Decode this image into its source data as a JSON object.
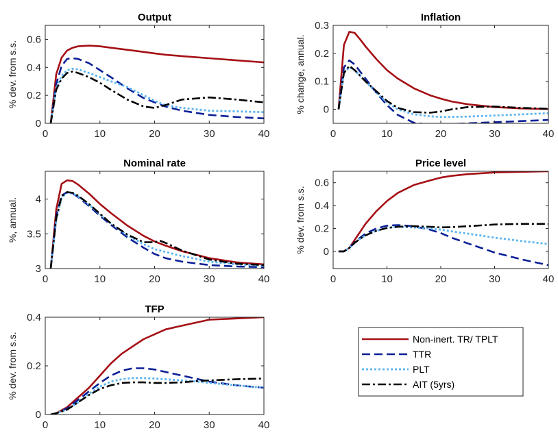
{
  "legend": [
    {
      "label": "Non-inert. TR/ TPLT",
      "color": "#a50f15",
      "dash": "solid"
    },
    {
      "label": "TTR",
      "color": "#0b1f96",
      "dash": "dash"
    },
    {
      "label": "PLT",
      "color": "#5ab4f0",
      "dash": "dot"
    },
    {
      "label": "AIT (5yrs)",
      "color": "#000000",
      "dash": "dashdot"
    }
  ],
  "chart_data": [
    {
      "type": "line",
      "title": "Output",
      "ylabel": "% dev. from s.s.",
      "xlim": [
        0,
        40
      ],
      "ylim": [
        0,
        0.7
      ],
      "xticks": [
        0,
        10,
        20,
        30,
        40
      ],
      "yticks": [
        0,
        0.2,
        0.4,
        0.6
      ],
      "x": [
        1,
        2,
        3,
        4,
        5,
        6,
        8,
        10,
        12,
        15,
        18,
        20,
        22,
        25,
        30,
        35,
        40
      ],
      "series": [
        {
          "name": "Non-inert. TR/ TPLT",
          "values": [
            0,
            0.35,
            0.47,
            0.52,
            0.54,
            0.55,
            0.555,
            0.55,
            0.54,
            0.525,
            0.51,
            0.5,
            0.49,
            0.48,
            0.465,
            0.45,
            0.435
          ]
        },
        {
          "name": "TTR",
          "values": [
            0,
            0.28,
            0.41,
            0.46,
            0.465,
            0.46,
            0.43,
            0.38,
            0.33,
            0.25,
            0.18,
            0.15,
            0.12,
            0.09,
            0.06,
            0.045,
            0.035
          ]
        },
        {
          "name": "PLT",
          "values": [
            0,
            0.25,
            0.34,
            0.38,
            0.39,
            0.385,
            0.36,
            0.33,
            0.3,
            0.26,
            0.2,
            0.16,
            0.13,
            0.11,
            0.09,
            0.085,
            0.08
          ]
        },
        {
          "name": "AIT (5yrs)",
          "values": [
            0,
            0.24,
            0.32,
            0.36,
            0.37,
            0.36,
            0.33,
            0.29,
            0.24,
            0.17,
            0.12,
            0.11,
            0.13,
            0.17,
            0.185,
            0.17,
            0.15
          ]
        }
      ]
    },
    {
      "type": "line",
      "title": "Inflation",
      "ylabel": "% change, annual.",
      "xlim": [
        0,
        40
      ],
      "ylim": [
        -0.05,
        0.3
      ],
      "xticks": [
        0,
        10,
        20,
        30,
        40
      ],
      "yticks": [
        0,
        0.1,
        0.2,
        0.3
      ],
      "x": [
        1,
        2,
        3,
        4,
        5,
        6,
        8,
        10,
        12,
        15,
        18,
        20,
        22,
        25,
        30,
        35,
        40
      ],
      "series": [
        {
          "name": "Non-inert. TR/ TPLT",
          "values": [
            0,
            0.23,
            0.277,
            0.273,
            0.25,
            0.225,
            0.18,
            0.14,
            0.11,
            0.075,
            0.05,
            0.038,
            0.028,
            0.018,
            0.008,
            0.003,
            0.001
          ]
        },
        {
          "name": "TTR",
          "values": [
            0,
            0.15,
            0.175,
            0.16,
            0.135,
            0.11,
            0.06,
            0.015,
            -0.02,
            -0.048,
            -0.055,
            -0.055,
            -0.053,
            -0.05,
            -0.046,
            -0.042,
            -0.038
          ]
        },
        {
          "name": "PLT",
          "values": [
            0,
            0.13,
            0.15,
            0.14,
            0.12,
            0.1,
            0.06,
            0.025,
            0.0,
            -0.018,
            -0.025,
            -0.027,
            -0.027,
            -0.026,
            -0.022,
            -0.018,
            -0.014
          ]
        },
        {
          "name": "AIT (5yrs)",
          "values": [
            0,
            0.13,
            0.155,
            0.14,
            0.12,
            0.1,
            0.065,
            0.03,
            0.005,
            -0.01,
            -0.012,
            -0.008,
            0.0,
            0.008,
            0.01,
            0.005,
            0.002
          ]
        }
      ]
    },
    {
      "type": "line",
      "title": "Nominal rate",
      "ylabel": "%, annual.",
      "xlim": [
        0,
        40
      ],
      "ylim": [
        3,
        4.4
      ],
      "xticks": [
        0,
        10,
        20,
        30,
        40
      ],
      "yticks": [
        3,
        3.5,
        4
      ],
      "x": [
        1,
        2,
        3,
        4,
        5,
        6,
        8,
        10,
        12,
        15,
        18,
        20,
        21,
        22,
        25,
        30,
        35,
        40
      ],
      "series": [
        {
          "name": "Non-inert. TR/ TPLT",
          "values": [
            3.0,
            3.85,
            4.22,
            4.27,
            4.26,
            4.21,
            4.08,
            3.93,
            3.8,
            3.62,
            3.47,
            3.39,
            3.36,
            3.33,
            3.25,
            3.15,
            3.09,
            3.06
          ]
        },
        {
          "name": "TTR",
          "values": [
            3.0,
            3.75,
            4.05,
            4.1,
            4.08,
            4.03,
            3.9,
            3.76,
            3.63,
            3.45,
            3.3,
            3.21,
            3.18,
            3.15,
            3.1,
            3.05,
            3.03,
            3.02
          ]
        },
        {
          "name": "PLT",
          "values": [
            3.0,
            3.7,
            4.02,
            4.09,
            4.08,
            4.04,
            3.92,
            3.78,
            3.65,
            3.48,
            3.35,
            3.28,
            3.26,
            3.24,
            3.18,
            3.1,
            3.06,
            3.04
          ]
        },
        {
          "name": "AIT (5yrs)",
          "values": [
            3.0,
            3.72,
            4.04,
            4.1,
            4.09,
            4.05,
            3.93,
            3.79,
            3.65,
            3.49,
            3.38,
            3.38,
            3.4,
            3.37,
            3.26,
            3.13,
            3.07,
            3.05
          ]
        }
      ]
    },
    {
      "type": "line",
      "title": "Price level",
      "ylabel": "% dev. from s.s.",
      "xlim": [
        0,
        40
      ],
      "ylim": [
        -0.15,
        0.7
      ],
      "xticks": [
        0,
        10,
        20,
        30,
        40
      ],
      "yticks": [
        0,
        0.2,
        0.4,
        0.6
      ],
      "x": [
        1,
        2,
        3,
        4,
        5,
        6,
        8,
        10,
        12,
        15,
        18,
        20,
        22,
        25,
        30,
        35,
        40
      ],
      "series": [
        {
          "name": "Non-inert. TR/ TPLT",
          "values": [
            0,
            0,
            0.03,
            0.1,
            0.17,
            0.24,
            0.35,
            0.44,
            0.51,
            0.58,
            0.62,
            0.645,
            0.66,
            0.675,
            0.69,
            0.695,
            0.7
          ]
        },
        {
          "name": "TTR",
          "values": [
            0,
            0,
            0.03,
            0.08,
            0.12,
            0.155,
            0.2,
            0.225,
            0.23,
            0.22,
            0.19,
            0.16,
            0.12,
            0.07,
            -0.01,
            -0.07,
            -0.12
          ]
        },
        {
          "name": "PLT",
          "values": [
            0,
            0,
            0.03,
            0.075,
            0.11,
            0.14,
            0.18,
            0.205,
            0.215,
            0.21,
            0.2,
            0.19,
            0.175,
            0.155,
            0.12,
            0.09,
            0.065
          ]
        },
        {
          "name": "AIT (5yrs)",
          "values": [
            0,
            0,
            0.03,
            0.075,
            0.11,
            0.14,
            0.18,
            0.205,
            0.215,
            0.22,
            0.215,
            0.21,
            0.212,
            0.22,
            0.235,
            0.24,
            0.24
          ]
        }
      ]
    },
    {
      "type": "line",
      "title": "TFP",
      "ylabel": "% dev. from s.s.",
      "xlim": [
        0,
        40
      ],
      "ylim": [
        0,
        0.4
      ],
      "xticks": [
        0,
        10,
        20,
        30,
        40
      ],
      "yticks": [
        0,
        0.2,
        0.4
      ],
      "x": [
        1,
        2,
        4,
        6,
        8,
        10,
        12,
        14,
        16,
        18,
        20,
        22,
        25,
        28,
        30,
        35,
        40
      ],
      "series": [
        {
          "name": "Non-inert. TR/ TPLT",
          "values": [
            0,
            0.005,
            0.03,
            0.07,
            0.11,
            0.16,
            0.21,
            0.25,
            0.28,
            0.31,
            0.33,
            0.35,
            0.365,
            0.38,
            0.39,
            0.395,
            0.4
          ]
        },
        {
          "name": "TTR",
          "values": [
            0,
            0.005,
            0.025,
            0.06,
            0.095,
            0.13,
            0.16,
            0.18,
            0.19,
            0.19,
            0.185,
            0.175,
            0.16,
            0.145,
            0.135,
            0.12,
            0.11
          ]
        },
        {
          "name": "PLT",
          "values": [
            0,
            0.005,
            0.02,
            0.05,
            0.085,
            0.115,
            0.135,
            0.145,
            0.15,
            0.15,
            0.148,
            0.145,
            0.14,
            0.135,
            0.13,
            0.12,
            0.11
          ]
        },
        {
          "name": "AIT (5yrs)",
          "values": [
            0,
            0.005,
            0.02,
            0.05,
            0.08,
            0.105,
            0.12,
            0.13,
            0.132,
            0.132,
            0.13,
            0.13,
            0.132,
            0.138,
            0.14,
            0.145,
            0.148
          ]
        }
      ]
    }
  ]
}
